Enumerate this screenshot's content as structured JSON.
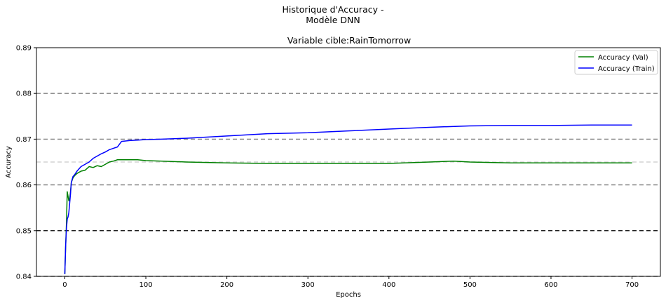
{
  "chart_data": {
    "type": "line",
    "suptitle_line1": "Historique d'Accuracy -",
    "suptitle_line2": "Modèle DNN",
    "title": "Variable cible:RainTomorrow",
    "xlabel": "Epochs",
    "ylabel": "Accuracy",
    "xlim": [
      -35,
      735
    ],
    "ylim": [
      0.84,
      0.89
    ],
    "xticks": [
      0,
      100,
      200,
      300,
      400,
      500,
      600,
      700
    ],
    "yticks": [
      0.84,
      0.85,
      0.86,
      0.87,
      0.88,
      0.89
    ],
    "ytick_labels": [
      "0.84",
      "0.85",
      "0.86",
      "0.87",
      "0.88",
      "0.89"
    ],
    "legend_position": "top-right",
    "reference_lines": [
      {
        "y": 0.85,
        "color": "#000000",
        "style": "dashed"
      },
      {
        "y": 0.86,
        "color": "#808080",
        "style": "dashed"
      },
      {
        "y": 0.87,
        "color": "#808080",
        "style": "dashed"
      },
      {
        "y": 0.88,
        "color": "#808080",
        "style": "dashed"
      },
      {
        "y": 0.865,
        "color": "#d3d3d3",
        "style": "dashed"
      },
      {
        "y": 0.84,
        "color": "#808080",
        "style": "dashed"
      }
    ],
    "series": [
      {
        "name": "Accuracy (Val)",
        "color": "#008000",
        "x": [
          0,
          1,
          2,
          3,
          4,
          5,
          6,
          7,
          8,
          10,
          12,
          15,
          20,
          25,
          30,
          35,
          40,
          45,
          50,
          55,
          60,
          65,
          70,
          80,
          90,
          100,
          120,
          150,
          200,
          250,
          300,
          350,
          400,
          450,
          480,
          500,
          550,
          600,
          650,
          700
        ],
        "y": [
          0.8405,
          0.8465,
          0.8515,
          0.8585,
          0.8575,
          0.8565,
          0.857,
          0.8585,
          0.8605,
          0.8615,
          0.862,
          0.8625,
          0.863,
          0.8632,
          0.864,
          0.8638,
          0.8642,
          0.864,
          0.8645,
          0.865,
          0.8652,
          0.8655,
          0.8655,
          0.8655,
          0.8655,
          0.8653,
          0.8652,
          0.865,
          0.8648,
          0.8647,
          0.8647,
          0.8647,
          0.8647,
          0.865,
          0.8652,
          0.865,
          0.8648,
          0.8648,
          0.8648,
          0.8648
        ]
      },
      {
        "name": "Accuracy (Train)",
        "color": "#0000ff",
        "x": [
          0,
          1,
          2,
          3,
          4,
          5,
          6,
          7,
          8,
          10,
          12,
          15,
          20,
          25,
          30,
          35,
          40,
          45,
          50,
          55,
          60,
          65,
          70,
          80,
          90,
          100,
          120,
          150,
          200,
          250,
          300,
          350,
          400,
          450,
          500,
          550,
          600,
          650,
          700
        ],
        "y": [
          0.8405,
          0.8465,
          0.8505,
          0.8525,
          0.853,
          0.854,
          0.856,
          0.858,
          0.8605,
          0.8618,
          0.8622,
          0.863,
          0.864,
          0.8645,
          0.865,
          0.8658,
          0.8663,
          0.8668,
          0.8672,
          0.8677,
          0.868,
          0.8683,
          0.8695,
          0.8697,
          0.8698,
          0.8699,
          0.87,
          0.8702,
          0.8707,
          0.8712,
          0.8714,
          0.8718,
          0.8722,
          0.8726,
          0.8729,
          0.873,
          0.873,
          0.8731,
          0.8731
        ]
      }
    ]
  }
}
